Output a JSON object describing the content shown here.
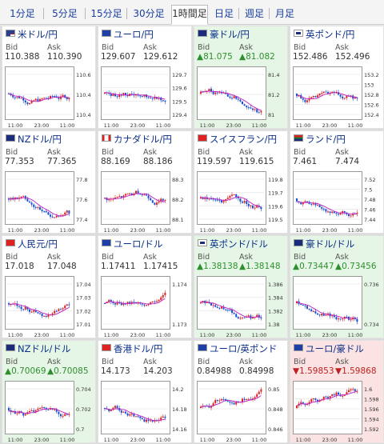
{
  "tabs": [
    "1分足",
    "5分足",
    "15分足",
    "30分足",
    "1時間足",
    "日足",
    "週足",
    "月足"
  ],
  "selected_tab": 4,
  "labels": {
    "bid": "Bid",
    "ask": "Ask"
  },
  "time_labels": [
    "11:00",
    "23:00",
    "11:00"
  ],
  "colors": {
    "up": "#2f8f2f",
    "down": "#c02020",
    "candle_up": "#d22",
    "candle_down": "#1a4fd1",
    "ma": "#c01cc0",
    "link": "#0a2f8a"
  },
  "cards": [
    {
      "name": "米ドル/円",
      "flag": "flag-us",
      "bid": "110.388",
      "ask": "110.390",
      "status": "none",
      "ticks": [
        "110.6",
        "110.4",
        "110.4"
      ],
      "trend": "flat"
    },
    {
      "name": "ユーロ/円",
      "flag": "flag-eu",
      "bid": "129.607",
      "ask": "129.612",
      "status": "none",
      "ticks": [
        "129.7",
        "129.6",
        "129.5",
        "129.4"
      ],
      "trend": "flat"
    },
    {
      "name": "豪ドル/円",
      "flag": "flag-au",
      "bid": "▲81.075",
      "ask": "▲81.082",
      "status": "up",
      "ticks": [
        "81.4",
        "81.2",
        "81"
      ],
      "trend": "down"
    },
    {
      "name": "英ポンド/円",
      "flag": "flag-gb",
      "bid": "152.486",
      "ask": "152.496",
      "status": "none",
      "ticks": [
        "153.2",
        "153",
        "152.8",
        "152.6",
        "152.4"
      ],
      "trend": "down"
    },
    {
      "name": "NZドル/円",
      "flag": "flag-nz",
      "bid": "77.353",
      "ask": "77.365",
      "status": "none",
      "ticks": [
        "77.8",
        "77.6",
        "77.4"
      ],
      "trend": "down"
    },
    {
      "name": "カナダドル/円",
      "flag": "flag-ca",
      "bid": "88.169",
      "ask": "88.186",
      "status": "none",
      "ticks": [
        "88.3",
        "88.2",
        "88.1"
      ],
      "trend": "flat"
    },
    {
      "name": "スイスフラン/円",
      "flag": "flag-ch",
      "bid": "119.597",
      "ask": "119.615",
      "status": "none",
      "ticks": [
        "119.8",
        "119.7",
        "119.6",
        "119.5"
      ],
      "trend": "down"
    },
    {
      "name": "ランド/円",
      "flag": "flag-za",
      "bid": "7.461",
      "ask": "7.474",
      "status": "none",
      "ticks": [
        "7.52",
        "7.5",
        "7.48",
        "7.46",
        "7.44"
      ],
      "trend": "down"
    },
    {
      "name": "人民元/円",
      "flag": "flag-cn",
      "bid": "17.018",
      "ask": "17.048",
      "status": "none",
      "ticks": [
        "17.04",
        "17.03",
        "17.02",
        "17.01"
      ],
      "trend": "flat"
    },
    {
      "name": "ユーロ/ドル",
      "flag": "flag-eu",
      "bid": "1.17411",
      "ask": "1.17415",
      "status": "none",
      "ticks": [
        "1.174",
        "1.173"
      ],
      "trend": "flat"
    },
    {
      "name": "英ポンド/ドル",
      "flag": "flag-gb",
      "bid": "▲1.38138",
      "ask": "▲1.38148",
      "status": "up",
      "ticks": [
        "1.386",
        "1.384",
        "1.382",
        "1.38"
      ],
      "trend": "down"
    },
    {
      "name": "豪ドル/ドル",
      "flag": "flag-au",
      "bid": "▲0.73447",
      "ask": "▲0.73456",
      "status": "up",
      "ticks": [
        "0.736",
        "0.734"
      ],
      "trend": "down"
    },
    {
      "name": "NZドル/ドル",
      "flag": "flag-nz",
      "bid": "▲0.70069",
      "ask": "▲0.70085",
      "status": "up",
      "ticks": [
        "0.704",
        "0.702",
        "0.7"
      ],
      "trend": "down"
    },
    {
      "name": "香港ドル/円",
      "flag": "flag-hk",
      "bid": "14.173",
      "ask": "14.203",
      "status": "none",
      "ticks": [
        "14.2",
        "14.18",
        "14.16"
      ],
      "trend": "flat"
    },
    {
      "name": "ユーロ/英ポンド",
      "flag": "flag-eu",
      "bid": "0.84988",
      "ask": "0.84998",
      "status": "none",
      "ticks": [
        "0.85",
        "0.848",
        "0.846"
      ],
      "trend": "up"
    },
    {
      "name": "ユーロ/豪ドル",
      "flag": "flag-eu",
      "bid": "▼1.59853",
      "ask": "▼1.59868",
      "status": "down",
      "ticks": [
        "1.6",
        "1.598",
        "1.596",
        "1.594",
        "1.592"
      ],
      "trend": "up"
    }
  ]
}
